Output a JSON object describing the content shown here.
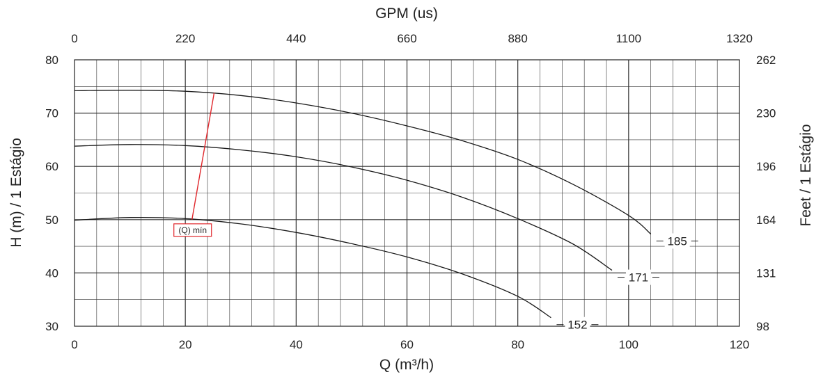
{
  "chart_data": {
    "type": "line",
    "title": "",
    "xlabel": "Q (m³/h)",
    "ylabel": "H (m) / 1 Estágio",
    "x2label": "GPM (us)",
    "y2label": "Feet / 1 Estágio",
    "xlim": [
      0,
      120
    ],
    "ylim": [
      30,
      80
    ],
    "x_ticks": [
      "0",
      "20",
      "40",
      "60",
      "80",
      "100",
      "120"
    ],
    "y_ticks": [
      "30",
      "40",
      "50",
      "60",
      "70",
      "80"
    ],
    "x2_ticks": [
      "0",
      "220",
      "440",
      "660",
      "880",
      "1100",
      "1320"
    ],
    "y2_ticks": [
      "98",
      "131",
      "164",
      "196",
      "230",
      "262"
    ],
    "grid": true,
    "series": [
      {
        "name": "185",
        "x": [
          0,
          10,
          20,
          30,
          40,
          50,
          60,
          70,
          80,
          90,
          100,
          104
        ],
        "y": [
          74.2,
          74.3,
          74.1,
          73.3,
          71.9,
          70.0,
          67.6,
          64.8,
          61.3,
          56.6,
          50.8,
          47.3
        ]
      },
      {
        "name": "171",
        "x": [
          0,
          10,
          20,
          30,
          40,
          50,
          60,
          70,
          80,
          90,
          97
        ],
        "y": [
          63.8,
          64.1,
          63.9,
          63.1,
          61.8,
          59.9,
          57.4,
          54.2,
          50.2,
          45.4,
          40.5
        ]
      },
      {
        "name": "152",
        "x": [
          0,
          10,
          20,
          30,
          40,
          50,
          60,
          70,
          80,
          86
        ],
        "y": [
          49.9,
          50.4,
          50.2,
          49.2,
          47.6,
          45.5,
          43.0,
          39.8,
          35.6,
          31.6
        ]
      }
    ],
    "annotations": [
      {
        "text": "(Q) mín",
        "x": [
          21.2,
          25.2
        ],
        "y": [
          50.0,
          73.8
        ],
        "color": "#e0262b"
      }
    ],
    "colors": {
      "curves": "#1a1a1a",
      "grid": "#333333",
      "qmin": "#e0262b"
    }
  }
}
